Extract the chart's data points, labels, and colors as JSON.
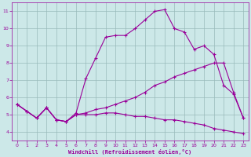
{
  "background_color": "#cce8e8",
  "line_color": "#990099",
  "xlabel": "Windchill (Refroidissement éolien,°C)",
  "xlim": [
    -0.5,
    23.5
  ],
  "ylim": [
    3.5,
    11.5
  ],
  "xticks": [
    0,
    1,
    2,
    3,
    4,
    5,
    6,
    7,
    8,
    9,
    10,
    11,
    12,
    13,
    14,
    15,
    16,
    17,
    18,
    19,
    20,
    21,
    22,
    23
  ],
  "yticks": [
    4,
    5,
    6,
    7,
    8,
    9,
    10,
    11
  ],
  "grid_color": "#99bbbb",
  "series": [
    {
      "x": [
        0,
        1,
        2,
        3,
        4,
        5,
        6,
        7,
        8,
        9,
        10,
        11,
        12,
        13,
        14,
        15,
        16,
        17,
        18,
        19,
        20,
        21,
        22,
        23
      ],
      "y": [
        5.6,
        5.2,
        4.8,
        5.4,
        4.7,
        4.6,
        5.1,
        7.1,
        8.3,
        9.5,
        9.6,
        9.6,
        10.0,
        10.5,
        11.0,
        11.1,
        10.0,
        9.8,
        8.8,
        9.0,
        8.5,
        6.7,
        6.2,
        4.8
      ]
    },
    {
      "x": [
        0,
        1,
        2,
        3,
        4,
        5,
        6,
        7,
        8,
        9,
        10,
        11,
        12,
        13,
        14,
        15,
        16,
        17,
        18,
        19,
        20,
        21,
        22,
        23
      ],
      "y": [
        5.6,
        5.2,
        4.8,
        5.4,
        4.7,
        4.6,
        5.0,
        5.1,
        5.3,
        5.4,
        5.6,
        5.8,
        6.0,
        6.3,
        6.7,
        6.9,
        7.2,
        7.4,
        7.6,
        7.8,
        8.0,
        8.0,
        6.3,
        4.8
      ]
    },
    {
      "x": [
        0,
        1,
        2,
        3,
        4,
        5,
        6,
        7,
        8,
        9,
        10,
        11,
        12,
        13,
        14,
        15,
        16,
        17,
        18,
        19,
        20,
        21,
        22,
        23
      ],
      "y": [
        5.6,
        5.2,
        4.8,
        5.4,
        4.7,
        4.6,
        5.0,
        5.0,
        5.0,
        5.1,
        5.1,
        5.0,
        4.9,
        4.9,
        4.8,
        4.7,
        4.7,
        4.6,
        4.5,
        4.4,
        4.2,
        4.1,
        4.0,
        3.9
      ]
    }
  ]
}
